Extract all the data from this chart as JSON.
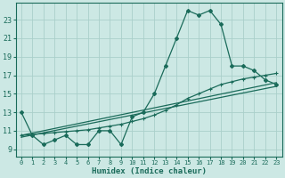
{
  "xlabel": "Humidex (Indice chaleur)",
  "bg_color": "#cce8e4",
  "grid_color": "#aacfca",
  "line_color": "#1a6b5a",
  "x_ticks": [
    0,
    1,
    2,
    3,
    4,
    5,
    6,
    7,
    8,
    9,
    10,
    11,
    12,
    13,
    14,
    15,
    16,
    17,
    18,
    19,
    20,
    21,
    22,
    23
  ],
  "y_ticks": [
    9,
    11,
    13,
    15,
    17,
    19,
    21,
    23
  ],
  "ylim": [
    8.2,
    24.8
  ],
  "xlim": [
    -0.5,
    23.5
  ],
  "zigzag_x": [
    0,
    1,
    2,
    3,
    4,
    5,
    6,
    7,
    8,
    9,
    10,
    11,
    12,
    13,
    14,
    15,
    16,
    17,
    18,
    19,
    20,
    21,
    22,
    23
  ],
  "zigzag_y": [
    13,
    10.5,
    9.5,
    10,
    10.5,
    9.5,
    9.5,
    11,
    11,
    9.5,
    12.5,
    13,
    15,
    18,
    21,
    24,
    23.5,
    24,
    22.5,
    18,
    18,
    17.5,
    16.5,
    16
  ],
  "line2_x": [
    0,
    1,
    2,
    3,
    4,
    5,
    6,
    7,
    8,
    9,
    10,
    11,
    12,
    13,
    14,
    15,
    16,
    17,
    18,
    19,
    20,
    21,
    22,
    23
  ],
  "line2_y": [
    10.5,
    10.6,
    10.7,
    10.8,
    10.9,
    11.0,
    11.1,
    11.3,
    11.5,
    11.7,
    12.0,
    12.3,
    12.7,
    13.2,
    13.8,
    14.5,
    15.0,
    15.5,
    16.0,
    16.3,
    16.6,
    16.8,
    17.0,
    17.2
  ],
  "line3_x": [
    0,
    23
  ],
  "line3_y": [
    10.5,
    16.2
  ],
  "line4_x": [
    0,
    23
  ],
  "line4_y": [
    10.3,
    15.8
  ]
}
